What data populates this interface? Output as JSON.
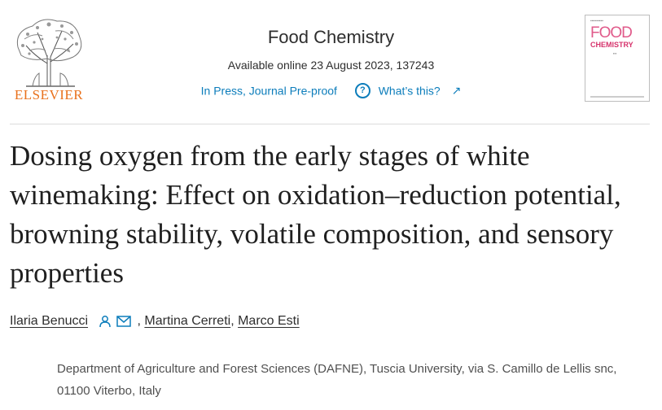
{
  "publisher": {
    "name": "ELSEVIER",
    "logo_icon": "elsevier-tree-icon",
    "brand_color": "#e9711c"
  },
  "journal": {
    "title": "Food Chemistry",
    "availability": "Available online 23 August 2023, 137243",
    "status": "In Press, Journal Pre-proof",
    "help_label": "What’s this?",
    "help_icon": "question-circle-icon",
    "external_icon": "arrow-up-right-icon",
    "link_color": "#0c7dbb"
  },
  "cover": {
    "title_line1": "FOOD",
    "title_line2": "CHEMISTRY",
    "accent_color": "#e05a8a"
  },
  "article": {
    "title": "Dosing oxygen from the early stages of white winemaking: Effect on oxidation–reduction potential, browning stability, volatile composition, and sensory properties"
  },
  "authors": [
    {
      "name": "Ilaria Benucci",
      "icons": [
        "person-icon",
        "envelope-icon"
      ]
    },
    {
      "name": "Martina Cerreti",
      "separator": ", "
    },
    {
      "name": "Marco Esti",
      "separator": ", "
    }
  ],
  "affiliation": "Department of Agriculture and Forest Sciences (DAFNE), Tuscia University, via S. Camillo de Lellis snc, 01100 Viterbo, Italy"
}
